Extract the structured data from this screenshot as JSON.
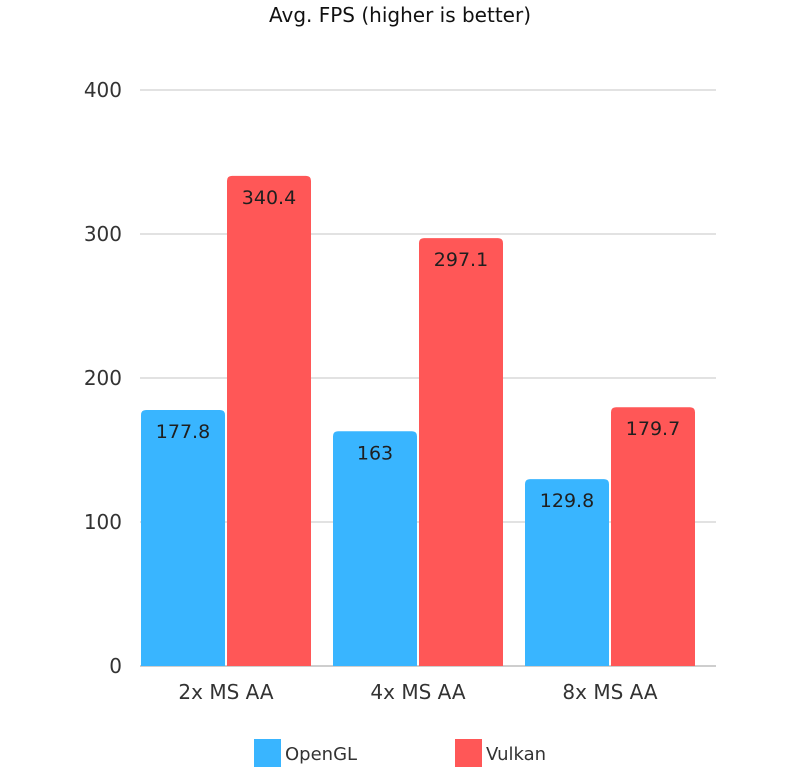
{
  "chart_data": {
    "type": "bar",
    "title": "Avg. FPS (higher is better)",
    "xlabel": "",
    "ylabel": "",
    "categories": [
      "2x MS AA",
      "4x MS AA",
      "8x MS AA"
    ],
    "series": [
      {
        "name": "OpenGL",
        "color": "#39b5ff",
        "values": [
          177.8,
          163,
          129.8
        ],
        "labels": [
          "177.8",
          "163",
          "129.8"
        ]
      },
      {
        "name": "Vulkan",
        "color": "#ff5757",
        "values": [
          340.4,
          297.1,
          179.7
        ],
        "labels": [
          "340.4",
          "297.1",
          "179.7"
        ]
      }
    ],
    "ylim": [
      0,
      400
    ],
    "yticks": [
      0,
      100,
      200,
      300,
      400
    ],
    "ytick_labels": [
      "0",
      "100",
      "200",
      "300",
      "400"
    ],
    "grid": true,
    "legend_position": "bottom"
  }
}
